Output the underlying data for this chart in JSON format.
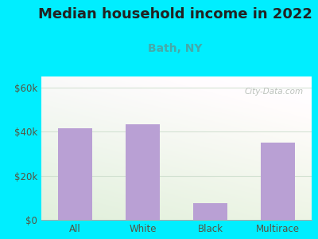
{
  "title": "Median household income in 2022",
  "subtitle": "Bath, NY",
  "categories": [
    "All",
    "White",
    "Black",
    "Multirace"
  ],
  "values": [
    41500,
    43500,
    7500,
    35000
  ],
  "bar_color": "#b9a0d4",
  "title_fontsize": 13,
  "subtitle_fontsize": 10,
  "subtitle_color": "#44aaaa",
  "tick_label_color": "#555544",
  "background_outer": "#00eeff",
  "ylim": [
    0,
    65000
  ],
  "yticks": [
    0,
    20000,
    40000,
    60000
  ],
  "ytick_labels": [
    "$0",
    "$20k",
    "$40k",
    "$60k"
  ],
  "watermark": "City-Data.com",
  "grid_color": "#ccddcc",
  "bg_top": "#e8f5e8",
  "bg_bottom": "#d0eec8"
}
